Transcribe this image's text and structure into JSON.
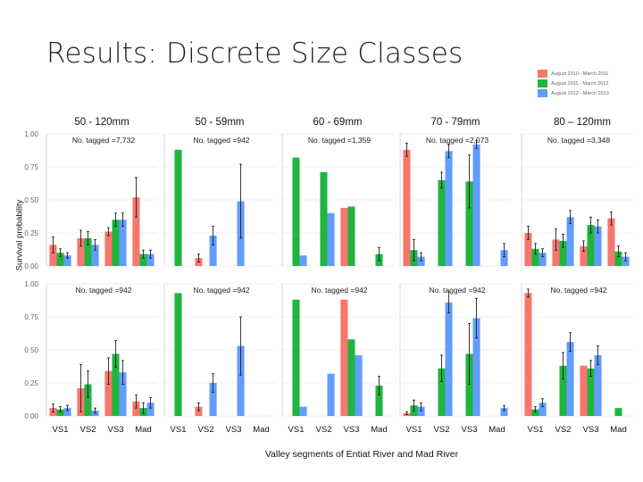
{
  "slide": {
    "title": "Results: Discrete Size Classes",
    "ylabel": "Survival probability",
    "xlabel": "Valley segments of Entiat River and Mad River"
  },
  "legend": [
    {
      "label": "August 2010 - March 2011",
      "color": "#f8766d"
    },
    {
      "label": "August 2011 - March 2012",
      "color": "#1fb53f"
    },
    {
      "label": "August 2012 - March 2013",
      "color": "#619cff"
    }
  ],
  "chart_data": {
    "type": "bar",
    "ylim": [
      0,
      1
    ],
    "yticks": [
      "0.00",
      "0.25",
      "0.50",
      "0.75",
      "1.00"
    ],
    "series_names": [
      "August 2010 - March 2011",
      "August 2011 - March 2012",
      "August 2012 - March 2013"
    ],
    "series_colors": [
      "#f8766d",
      "#1fb53f",
      "#619cff"
    ],
    "columns": [
      {
        "title": "50 - 120mm",
        "categories": [
          "VS1",
          "VS2",
          "VS3",
          "Mad"
        ]
      },
      {
        "title": "50 - 59mm",
        "categories": [
          "VS1",
          "VS2",
          "VS3",
          "Mad"
        ]
      },
      {
        "title": "60 - 69mm",
        "categories": [
          "VS1",
          "VS2",
          "VS3",
          "Mad"
        ]
      },
      {
        "title": "70 - 79mm",
        "categories": [
          "VS1",
          "VS2",
          "VS3",
          "Mad"
        ]
      },
      {
        "title": "80 – 120mm",
        "categories": [
          "VS1",
          "VS2",
          "VS3",
          "Mad"
        ]
      }
    ],
    "panels": [
      {
        "row": 0,
        "col": 0,
        "annotation": "No. tagged =7,732",
        "values": [
          [
            0.16,
            0.1,
            0.08
          ],
          [
            0.21,
            0.21,
            0.16
          ],
          [
            0.26,
            0.35,
            0.35
          ],
          [
            0.52,
            0.09,
            0.09
          ]
        ],
        "errors": [
          [
            0.06,
            0.03,
            0.02
          ],
          [
            0.06,
            0.05,
            0.04
          ],
          [
            0.03,
            0.05,
            0.05
          ],
          [
            0.15,
            0.03,
            0.03
          ]
        ]
      },
      {
        "row": 0,
        "col": 1,
        "annotation": "No. tagged =942",
        "values": [
          [
            0,
            0.88,
            0
          ],
          [
            0.06,
            0,
            0.23
          ],
          [
            0,
            0,
            0.49
          ],
          [
            0,
            0,
            0
          ]
        ],
        "errors": [
          [
            0,
            0,
            0
          ],
          [
            0.03,
            0,
            0.07
          ],
          [
            0,
            0,
            0.28
          ],
          [
            0,
            0,
            0
          ]
        ]
      },
      {
        "row": 0,
        "col": 2,
        "annotation": "No. tagged =1,359",
        "values": [
          [
            0,
            0.82,
            0.08
          ],
          [
            0,
            0.71,
            0.4
          ],
          [
            0.44,
            0.45,
            0
          ],
          [
            0,
            0.09,
            0
          ]
        ],
        "errors": [
          [
            0,
            0,
            0
          ],
          [
            0,
            0,
            0
          ],
          [
            0,
            0,
            0
          ],
          [
            0,
            0.05,
            0
          ]
        ]
      },
      {
        "row": 0,
        "col": 3,
        "annotation": "No. tagged =2,073",
        "values": [
          [
            0.88,
            0.12,
            0.07
          ],
          [
            0,
            0.65,
            0.87
          ],
          [
            0,
            0.64,
            0.92
          ],
          [
            0,
            0,
            0.12
          ]
        ],
        "errors": [
          [
            0.05,
            0.08,
            0.03
          ],
          [
            0,
            0.06,
            0.05
          ],
          [
            0,
            0.2,
            0.03
          ],
          [
            0,
            0,
            0.05
          ]
        ]
      },
      {
        "row": 0,
        "col": 4,
        "annotation": "No. tagged =3,348",
        "values": [
          [
            0.25,
            0.13,
            0.1
          ],
          [
            0.2,
            0.19,
            0.37
          ],
          [
            0.15,
            0.31,
            0.3
          ],
          [
            0.36,
            0.11,
            0.07
          ]
        ],
        "errors": [
          [
            0.05,
            0.04,
            0.03
          ],
          [
            0.08,
            0.05,
            0.05
          ],
          [
            0.04,
            0.06,
            0.05
          ],
          [
            0.05,
            0.04,
            0.03
          ]
        ]
      },
      {
        "row": 1,
        "col": 0,
        "annotation": "No. tagged =942",
        "values": [
          [
            0.06,
            0.05,
            0.06
          ],
          [
            0.21,
            0.24,
            0.04
          ],
          [
            0.34,
            0.47,
            0.33
          ],
          [
            0.11,
            0.06,
            0.1
          ]
        ],
        "errors": [
          [
            0.03,
            0.02,
            0.02
          ],
          [
            0.18,
            0.1,
            0.02
          ],
          [
            0.1,
            0.1,
            0.09
          ],
          [
            0.05,
            0.04,
            0.04
          ]
        ]
      },
      {
        "row": 1,
        "col": 1,
        "annotation": "No. tagged =942",
        "values": [
          [
            0,
            0.93,
            0
          ],
          [
            0.07,
            0,
            0.25
          ],
          [
            0,
            0,
            0.53
          ],
          [
            0,
            0,
            0
          ]
        ],
        "errors": [
          [
            0,
            0,
            0
          ],
          [
            0.03,
            0,
            0.07
          ],
          [
            0,
            0,
            0.22
          ],
          [
            0,
            0,
            0
          ]
        ]
      },
      {
        "row": 1,
        "col": 2,
        "annotation": "No. tagged =942",
        "values": [
          [
            0,
            0.88,
            0.07
          ],
          [
            0,
            0,
            0.32
          ],
          [
            0.88,
            0.58,
            0.46
          ],
          [
            0,
            0.23,
            0
          ]
        ],
        "errors": [
          [
            0,
            0,
            0
          ],
          [
            0,
            0,
            0
          ],
          [
            0,
            0,
            0
          ],
          [
            0,
            0.07,
            0
          ]
        ]
      },
      {
        "row": 1,
        "col": 3,
        "annotation": "No. tagged =942",
        "values": [
          [
            0.02,
            0.08,
            0.07
          ],
          [
            0,
            0.36,
            0.86
          ],
          [
            0,
            0.47,
            0.74
          ],
          [
            0,
            0,
            0.06
          ]
        ],
        "errors": [
          [
            0.01,
            0.04,
            0.03
          ],
          [
            0,
            0.1,
            0.08
          ],
          [
            0,
            0.23,
            0.15
          ],
          [
            0,
            0,
            0.02
          ]
        ]
      },
      {
        "row": 1,
        "col": 4,
        "annotation": "No. tagged =942",
        "values": [
          [
            0.93,
            0.05,
            0.1
          ],
          [
            0,
            0.38,
            0.56
          ],
          [
            0.38,
            0.36,
            0.46
          ],
          [
            0,
            0.06,
            0
          ]
        ],
        "errors": [
          [
            0.03,
            0.02,
            0.03
          ],
          [
            0,
            0.1,
            0.07
          ],
          [
            0,
            0.06,
            0.07
          ],
          [
            0,
            0,
            0
          ]
        ]
      }
    ]
  }
}
